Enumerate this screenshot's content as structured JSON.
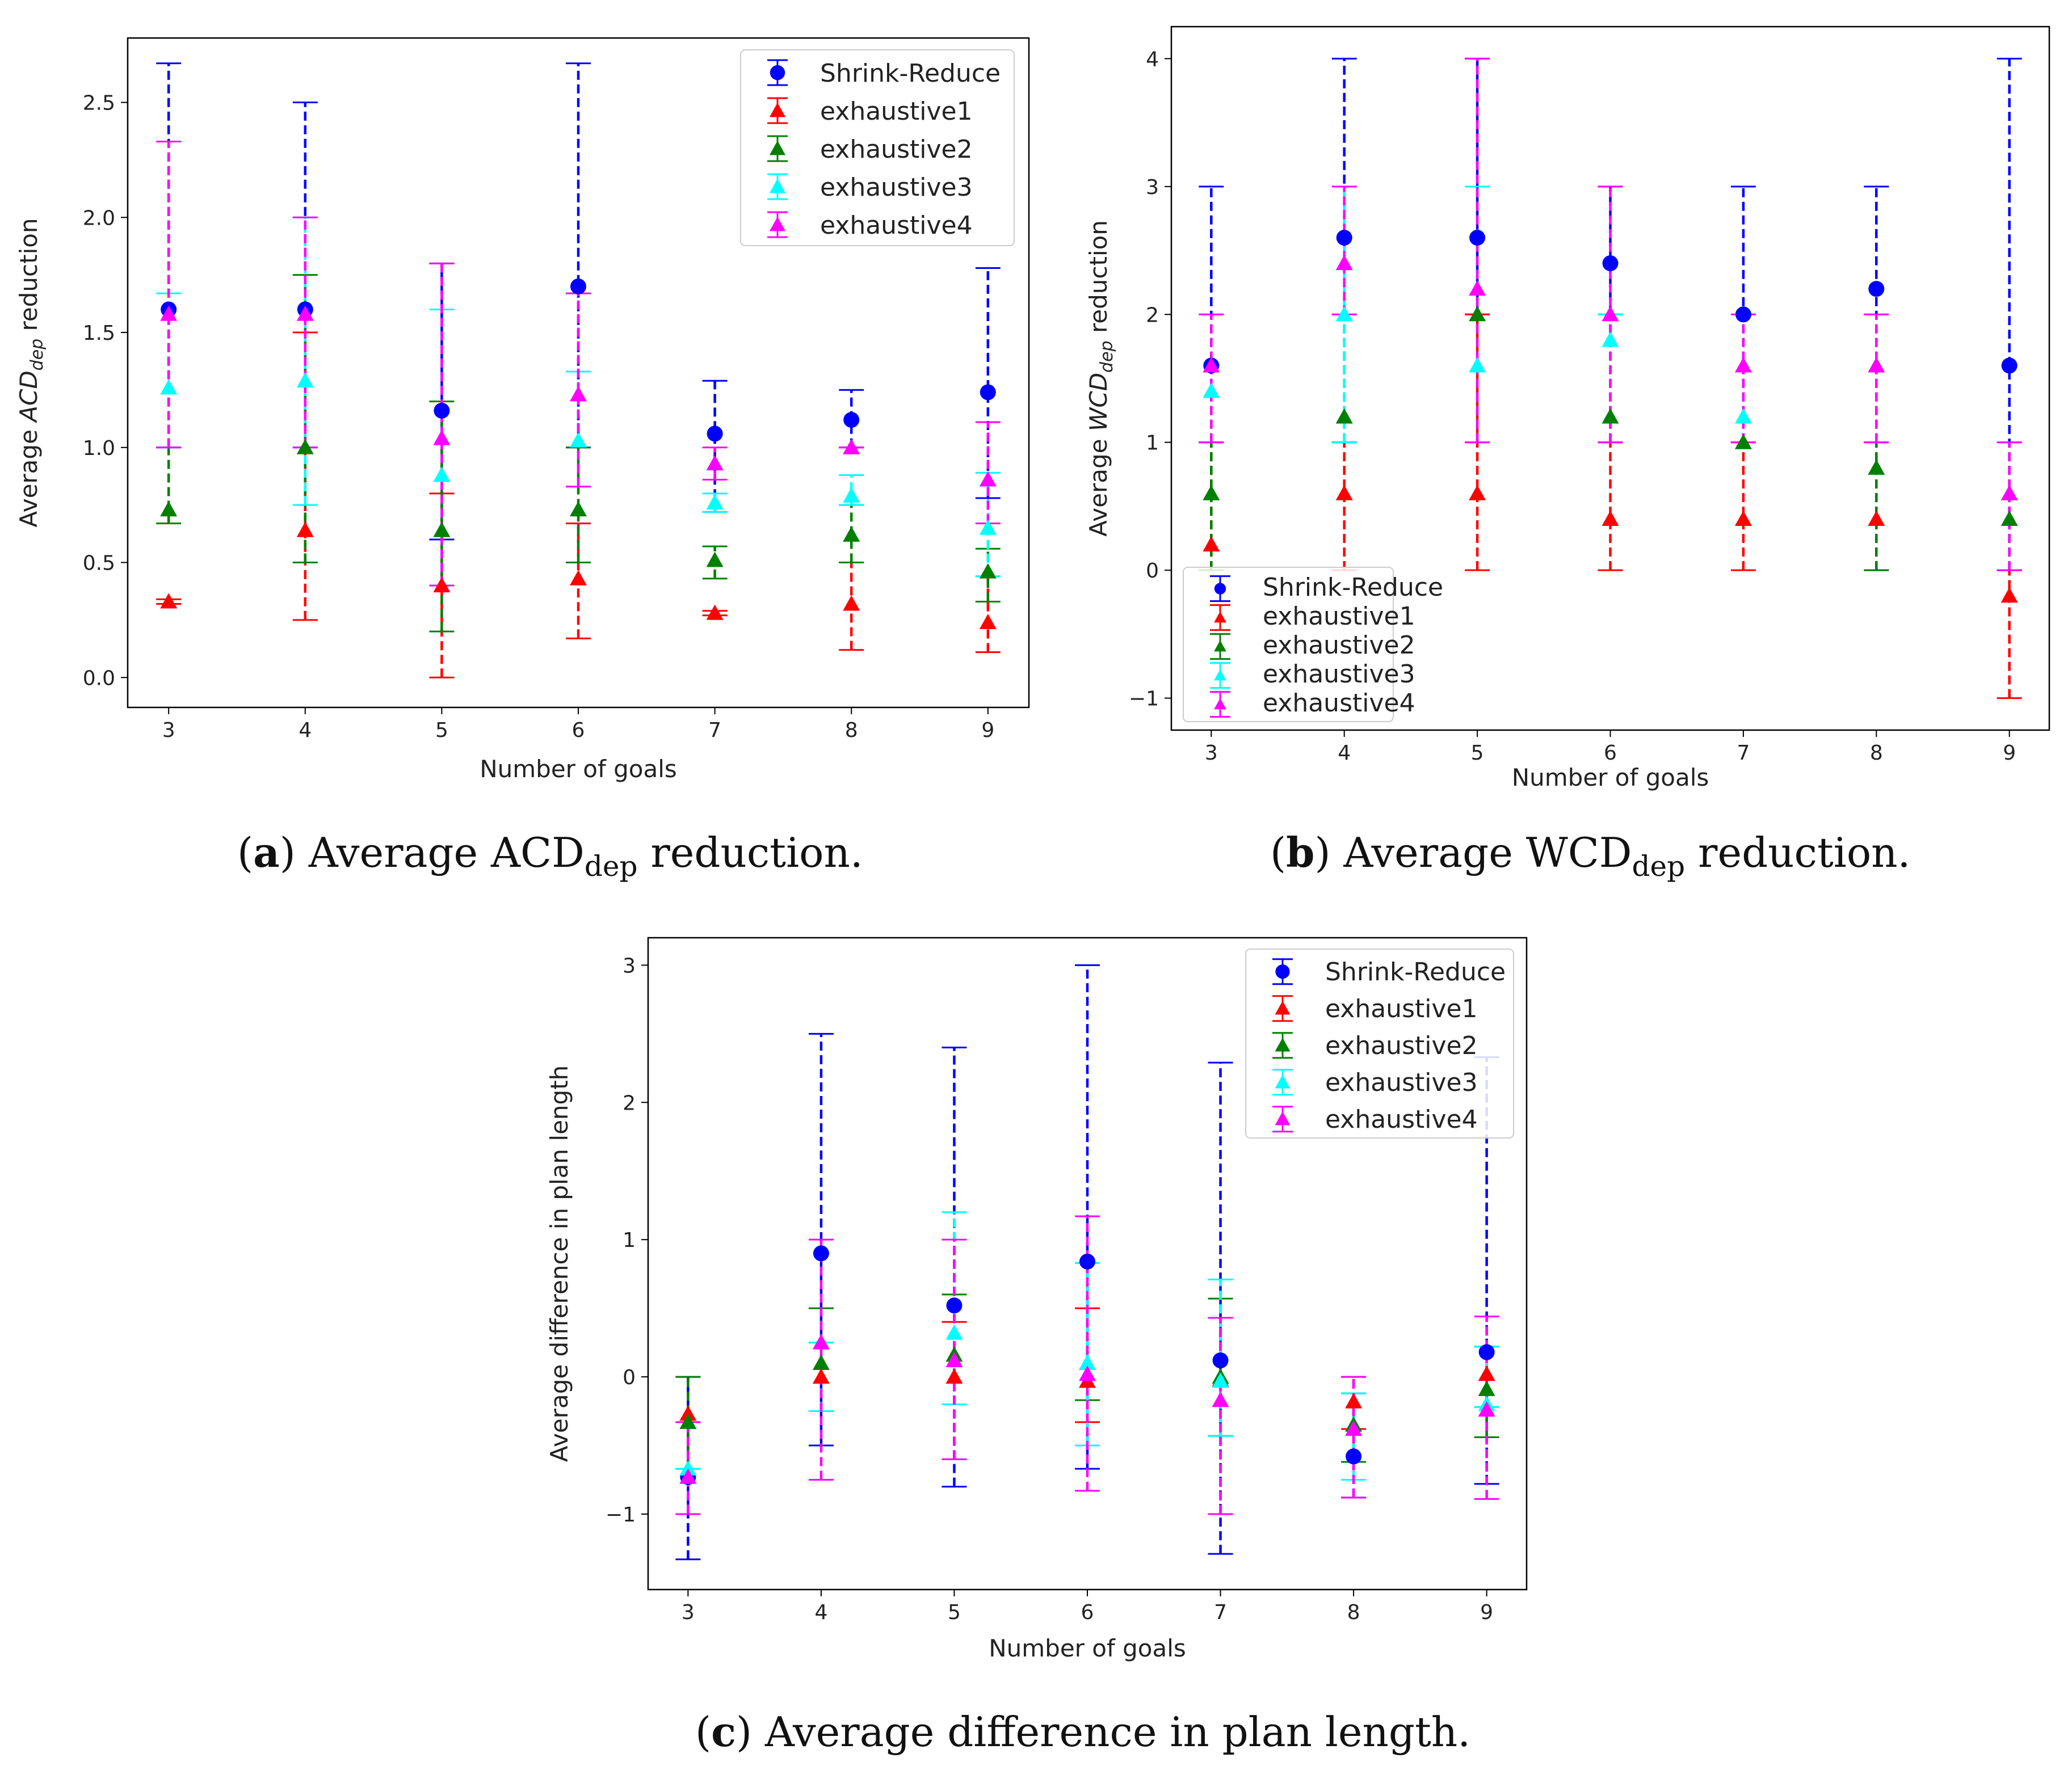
{
  "chart_data": [
    {
      "id": "a",
      "type": "scatter",
      "errorbars": true,
      "title": "",
      "xlabel": "Number of goals",
      "ylabel_parts": [
        "Average ",
        "ACD",
        "dep",
        " reduction"
      ],
      "x": [
        3,
        4,
        5,
        6,
        7,
        8,
        9
      ],
      "xlim": [
        2.7,
        9.3
      ],
      "ylim": [
        -0.13,
        2.78
      ],
      "yticks": [
        0.0,
        0.5,
        1.0,
        1.5,
        2.0,
        2.5
      ],
      "ytick_labels": [
        "0.0",
        "0.5",
        "1.0",
        "1.5",
        "2.0",
        "2.5"
      ],
      "legend_position": "upper right",
      "series": [
        {
          "name": "Shrink-Reduce",
          "color": "#0000ff",
          "marker": "circle",
          "values": [
            1.6,
            1.6,
            1.16,
            1.7,
            1.06,
            1.12,
            1.24
          ],
          "lower": [
            1.0,
            1.0,
            0.6,
            1.0,
            0.72,
            1.0,
            0.78
          ],
          "upper": [
            2.67,
            2.5,
            1.8,
            2.67,
            1.29,
            1.25,
            1.78
          ]
        },
        {
          "name": "exhaustive1",
          "color": "#ff0000",
          "marker": "triangle",
          "values": [
            0.33,
            0.64,
            0.4,
            0.43,
            0.28,
            0.32,
            0.24
          ],
          "lower": [
            0.32,
            0.25,
            0.0,
            0.17,
            0.27,
            0.12,
            0.11
          ],
          "upper": [
            0.34,
            1.5,
            0.8,
            0.67,
            0.29,
            0.5,
            0.44
          ]
        },
        {
          "name": "exhaustive2",
          "color": "#008000",
          "marker": "triangle",
          "values": [
            0.73,
            1.0,
            0.64,
            0.73,
            0.51,
            0.62,
            0.46
          ],
          "lower": [
            0.67,
            0.5,
            0.2,
            0.5,
            0.43,
            0.5,
            0.33
          ],
          "upper": [
            1.0,
            1.75,
            1.2,
            1.0,
            0.57,
            0.75,
            0.56
          ]
        },
        {
          "name": "exhaustive3",
          "color": "#00ffff",
          "marker": "triangle",
          "values": [
            1.26,
            1.29,
            0.88,
            1.03,
            0.76,
            0.79,
            0.65
          ],
          "lower": [
            1.0,
            0.75,
            0.4,
            0.83,
            0.72,
            0.75,
            0.44
          ],
          "upper": [
            1.67,
            2.0,
            1.6,
            1.33,
            0.8,
            0.88,
            0.89
          ]
        },
        {
          "name": "exhaustive4",
          "color": "#ff00ff",
          "marker": "triangle",
          "values": [
            1.58,
            1.58,
            1.04,
            1.23,
            0.93,
            1.0,
            0.86
          ],
          "lower": [
            1.0,
            1.0,
            0.4,
            0.83,
            0.86,
            1.0,
            0.67
          ],
          "upper": [
            2.33,
            2.0,
            1.8,
            1.67,
            1.0,
            1.0,
            1.11
          ]
        }
      ]
    },
    {
      "id": "b",
      "type": "scatter",
      "errorbars": true,
      "title": "",
      "xlabel": "Number of goals",
      "ylabel_parts": [
        "Average ",
        "WCD",
        "dep",
        " reduction"
      ],
      "x": [
        3,
        4,
        5,
        6,
        7,
        8,
        9
      ],
      "xlim": [
        2.7,
        9.3
      ],
      "ylim": [
        -1.25,
        4.25
      ],
      "yticks": [
        -1,
        0,
        1,
        2,
        3,
        4
      ],
      "ytick_labels": [
        "−1",
        "0",
        "1",
        "2",
        "3",
        "4"
      ],
      "legend_position": "lower left",
      "series": [
        {
          "name": "Shrink-Reduce",
          "color": "#0000ff",
          "marker": "circle",
          "values": [
            1.6,
            2.6,
            2.6,
            2.4,
            2.0,
            2.2,
            1.6
          ],
          "lower": [
            1.0,
            1.0,
            2.0,
            2.0,
            1.0,
            1.0,
            0.0
          ],
          "upper": [
            3.0,
            4.0,
            4.0,
            3.0,
            3.0,
            3.0,
            4.0
          ]
        },
        {
          "name": "exhaustive1",
          "color": "#ff0000",
          "marker": "triangle",
          "values": [
            0.2,
            0.6,
            0.6,
            0.4,
            0.4,
            0.4,
            -0.2
          ],
          "lower": [
            0.0,
            0.0,
            0.0,
            0.0,
            0.0,
            0.0,
            -1.0
          ],
          "upper": [
            1.0,
            1.0,
            2.0,
            1.0,
            1.0,
            1.0,
            0.0
          ]
        },
        {
          "name": "exhaustive2",
          "color": "#008000",
          "marker": "triangle",
          "values": [
            0.6,
            1.2,
            2.0,
            1.2,
            1.0,
            0.8,
            0.4
          ],
          "lower": [
            0.0,
            1.0,
            1.0,
            1.0,
            1.0,
            0.0,
            0.0
          ],
          "upper": [
            1.0,
            2.0,
            4.0,
            2.0,
            1.0,
            1.0,
            1.0
          ]
        },
        {
          "name": "exhaustive3",
          "color": "#00ffff",
          "marker": "triangle",
          "values": [
            1.4,
            2.0,
            1.6,
            1.8,
            1.2,
            1.6,
            0.6
          ],
          "lower": [
            1.0,
            1.0,
            1.0,
            1.0,
            1.0,
            1.0,
            0.0
          ],
          "upper": [
            2.0,
            3.0,
            3.0,
            2.0,
            2.0,
            2.0,
            1.0
          ]
        },
        {
          "name": "exhaustive4",
          "color": "#ff00ff",
          "marker": "triangle",
          "values": [
            1.6,
            2.4,
            2.2,
            2.0,
            1.6,
            1.6,
            0.6
          ],
          "lower": [
            1.0,
            2.0,
            1.0,
            1.0,
            1.0,
            1.0,
            0.0
          ],
          "upper": [
            2.0,
            3.0,
            4.0,
            3.0,
            2.0,
            2.0,
            1.0
          ]
        }
      ]
    },
    {
      "id": "c",
      "type": "scatter",
      "errorbars": true,
      "title": "",
      "xlabel": "Number of goals",
      "ylabel_parts": [
        "Average difference in plan length"
      ],
      "x": [
        3,
        4,
        5,
        6,
        7,
        8,
        9
      ],
      "xlim": [
        2.7,
        9.3
      ],
      "ylim": [
        -1.55,
        3.2
      ],
      "yticks": [
        -1,
        0,
        1,
        2,
        3
      ],
      "ytick_labels": [
        "−1",
        "0",
        "1",
        "2",
        "3"
      ],
      "legend_position": "upper right",
      "series": [
        {
          "name": "Shrink-Reduce",
          "color": "#0000ff",
          "marker": "circle",
          "values": [
            -0.73,
            0.9,
            0.52,
            0.84,
            0.12,
            -0.58,
            0.18
          ],
          "lower": [
            -1.33,
            -0.5,
            -0.8,
            -0.67,
            -1.29,
            -0.88,
            -0.78
          ],
          "upper": [
            0.0,
            2.5,
            2.4,
            3.0,
            2.29,
            -0.12,
            2.33
          ]
        },
        {
          "name": "exhaustive1",
          "color": "#ff0000",
          "marker": "triangle",
          "values": [
            -0.27,
            0.0,
            0.0,
            -0.03,
            -0.02,
            -0.18,
            0.02
          ],
          "lower": [
            -0.67,
            -0.25,
            -0.2,
            -0.33,
            -0.43,
            -0.38,
            -0.22
          ],
          "upper": [
            -0.33,
            0.25,
            0.4,
            0.5,
            0.43,
            0.0,
            0.22
          ]
        },
        {
          "name": "exhaustive2",
          "color": "#008000",
          "marker": "triangle",
          "values": [
            -0.33,
            0.1,
            0.16,
            0.1,
            0.0,
            -0.35,
            -0.09
          ],
          "lower": [
            -0.67,
            -0.25,
            -0.2,
            -0.17,
            -0.43,
            -0.62,
            -0.44
          ],
          "upper": [
            0.0,
            0.5,
            0.6,
            0.83,
            0.57,
            -0.12,
            0.22
          ]
        },
        {
          "name": "exhaustive3",
          "color": "#00ffff",
          "marker": "triangle",
          "values": [
            -0.67,
            0.25,
            0.32,
            0.1,
            -0.03,
            -0.38,
            -0.2
          ],
          "lower": [
            -0.67,
            -0.25,
            -0.2,
            -0.5,
            -0.43,
            -0.75,
            -0.22
          ],
          "upper": [
            -0.67,
            0.25,
            1.2,
            0.83,
            0.71,
            -0.12,
            0.22
          ]
        },
        {
          "name": "exhaustive4",
          "color": "#ff00ff",
          "marker": "triangle",
          "values": [
            -0.73,
            0.25,
            0.12,
            0.02,
            -0.17,
            -0.38,
            -0.24
          ],
          "lower": [
            -1.0,
            -0.75,
            -0.6,
            -0.83,
            -1.0,
            -0.88,
            -0.89
          ],
          "upper": [
            -0.33,
            1.0,
            1.0,
            1.17,
            0.43,
            0.0,
            0.44
          ]
        }
      ]
    }
  ],
  "captions": {
    "a": {
      "label": "a",
      "text_before": "Average ACD",
      "sub": "dep",
      "text_after": " reduction."
    },
    "b": {
      "label": "b",
      "text_before": "Average WCD",
      "sub": "dep",
      "text_after": " reduction."
    },
    "c": {
      "label": "c",
      "text_before": "Average difference in plan length.",
      "sub": "",
      "text_after": ""
    }
  }
}
